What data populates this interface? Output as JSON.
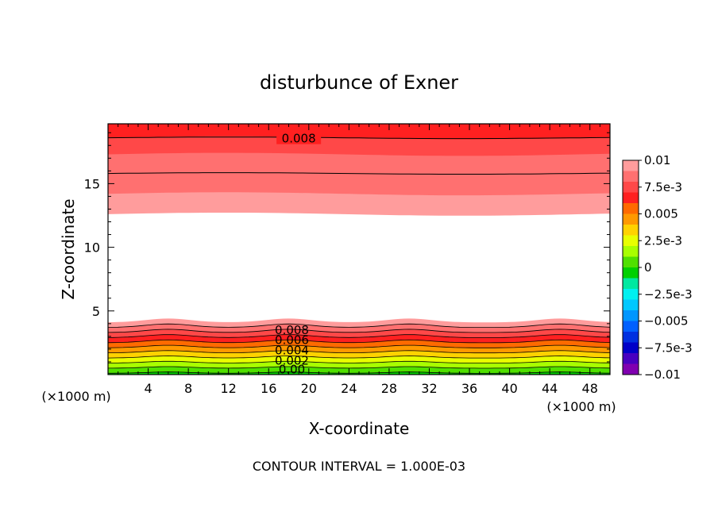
{
  "chart_data": {
    "type": "contour",
    "title": "disturbunce of Exner",
    "xlabel": "X-coordinate",
    "ylabel": "Z-coordinate",
    "x_unit_label": "(×1000 m)",
    "x_unit_label_right": "(×1000 m)",
    "xlim": [
      0,
      50
    ],
    "ylim": [
      0,
      19.7
    ],
    "x_ticks": [
      4,
      8,
      12,
      16,
      20,
      24,
      28,
      32,
      36,
      40,
      44,
      48
    ],
    "y_ticks": [
      5,
      10,
      15
    ],
    "footer": "CONTOUR INTERVAL = 1.000E-03",
    "colorbar": {
      "tick_labels": [
        "0.01",
        "7.5e-3",
        "0.005",
        "2.5e-3",
        "0",
        "−2.5e-3",
        "−0.005",
        "−7.5e-3",
        "−0.01"
      ],
      "levels_top_to_bottom": [
        {
          "range": [
            0.009,
            0.01
          ],
          "color": "#ff9c9c"
        },
        {
          "range": [
            0.008,
            0.009
          ],
          "color": "#ff7070"
        },
        {
          "range": [
            0.007,
            0.008
          ],
          "color": "#ff4848"
        },
        {
          "range": [
            0.006,
            0.007
          ],
          "color": "#ff2020"
        },
        {
          "range": [
            0.005,
            0.006
          ],
          "color": "#ff6a00"
        },
        {
          "range": [
            0.004,
            0.005
          ],
          "color": "#ff9900"
        },
        {
          "range": [
            0.003,
            0.004
          ],
          "color": "#ffd200"
        },
        {
          "range": [
            0.002,
            0.003
          ],
          "color": "#e8ff00"
        },
        {
          "range": [
            0.001,
            0.002
          ],
          "color": "#a8ff00"
        },
        {
          "range": [
            0.0,
            0.001
          ],
          "color": "#50e000"
        },
        {
          "range": [
            -0.001,
            0.0
          ],
          "color": "#00d000"
        },
        {
          "range": [
            -0.002,
            -0.001
          ],
          "color": "#00e8a0"
        },
        {
          "range": [
            -0.003,
            -0.002
          ],
          "color": "#00f0f0"
        },
        {
          "range": [
            -0.004,
            -0.003
          ],
          "color": "#00c8ff"
        },
        {
          "range": [
            -0.005,
            -0.004
          ],
          "color": "#0096ff"
        },
        {
          "range": [
            -0.006,
            -0.005
          ],
          "color": "#0060ff"
        },
        {
          "range": [
            -0.007,
            -0.006
          ],
          "color": "#0030e0"
        },
        {
          "range": [
            -0.008,
            -0.007
          ],
          "color": "#0000c8"
        },
        {
          "range": [
            -0.009,
            -0.008
          ],
          "color": "#4800c0"
        },
        {
          "range": [
            -0.01,
            -0.009
          ],
          "color": "#8000b0"
        }
      ]
    },
    "upper_region": {
      "bands_bottom_to_top": [
        {
          "z_bottom": 12.6,
          "color": "#ff9c9c"
        },
        {
          "z_bottom": 14.2,
          "color": "#ff7070"
        },
        {
          "z_bottom": 17.3,
          "color": "#ff4848"
        },
        {
          "z_bottom": 18.6,
          "color": "#ff2020"
        }
      ],
      "top": 19.7,
      "contour_lines": [
        {
          "z": 15.8,
          "label": ""
        },
        {
          "z": 18.6,
          "label": "0.008"
        }
      ]
    },
    "lower_region": {
      "description_free": true,
      "z_levels": [
        0.1,
        0.5,
        0.9,
        1.3,
        1.7,
        2.1,
        2.5,
        2.9,
        3.3,
        3.7,
        4.1
      ],
      "level_colors": [
        "#00d000",
        "#50e000",
        "#a8ff00",
        "#e8ff00",
        "#ffd200",
        "#ff9900",
        "#ff6a00",
        "#ff2020",
        "#ff4848",
        "#ff7070",
        "#ff9c9c"
      ],
      "bump_centers_x": [
        6,
        18,
        30,
        45
      ],
      "bump_amplitude": 0.3,
      "contour_labels": [
        "0.008",
        "0.006",
        "0.004",
        "0.002",
        "0.00"
      ],
      "contour_label_z": [
        3.5,
        2.7,
        1.9,
        1.1,
        0.4
      ],
      "contour_label_x": 18
    }
  }
}
